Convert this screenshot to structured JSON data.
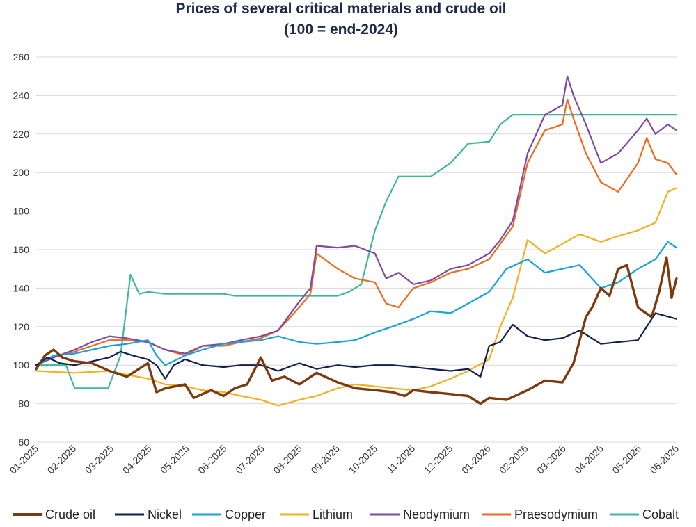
{
  "chart_data": {
    "type": "line",
    "title": "Prices of several critical materials and crude oil",
    "subtitle": "(100 = end-2024)",
    "xlabel": "",
    "ylabel": "",
    "ylim": [
      60,
      260
    ],
    "yticks": [
      60,
      80,
      100,
      120,
      140,
      160,
      180,
      200,
      220,
      240,
      260
    ],
    "xlim": [
      "2025-01-01",
      "2026-06-01"
    ],
    "xtick_labels": [
      "01-2025",
      "02-2025",
      "03-2025",
      "04-2025",
      "05-2025",
      "06-2025",
      "07-2025",
      "08-2025",
      "09-2025",
      "10-2025",
      "11-2025",
      "12-2025",
      "01-2026",
      "02-2026",
      "03-2026",
      "04-2026",
      "05-2026",
      "06-2026"
    ],
    "grid": "horizontal",
    "legend_position": "bottom",
    "series": [
      {
        "name": "Crude oil",
        "color": "#7b3a10",
        "x": [
          "2025-01-01",
          "2025-01-08",
          "2025-01-15",
          "2025-01-22",
          "2025-02-01",
          "2025-02-15",
          "2025-03-01",
          "2025-03-15",
          "2025-04-01",
          "2025-04-08",
          "2025-04-15",
          "2025-05-01",
          "2025-05-08",
          "2025-05-22",
          "2025-06-01",
          "2025-06-10",
          "2025-06-20",
          "2025-07-01",
          "2025-07-10",
          "2025-07-20",
          "2025-08-01",
          "2025-08-15",
          "2025-09-01",
          "2025-09-15",
          "2025-10-01",
          "2025-10-15",
          "2025-10-25",
          "2025-11-01",
          "2025-11-15",
          "2025-12-01",
          "2025-12-15",
          "2025-12-25",
          "2026-01-01",
          "2026-01-15",
          "2026-02-01",
          "2026-02-15",
          "2026-03-01",
          "2026-03-10",
          "2026-03-20",
          "2026-03-25",
          "2026-04-01",
          "2026-04-08",
          "2026-04-15",
          "2026-04-22",
          "2026-05-01",
          "2026-05-05",
          "2026-05-12",
          "2026-05-18",
          "2026-05-24",
          "2026-05-28",
          "2026-06-01"
        ],
        "values": [
          98,
          105,
          108,
          104,
          102,
          101,
          97,
          94,
          101,
          86,
          88,
          90,
          83,
          87,
          84,
          88,
          90,
          104,
          92,
          94,
          90,
          96,
          91,
          88,
          87,
          86,
          84,
          87,
          86,
          85,
          84,
          80,
          83,
          82,
          87,
          92,
          91,
          101,
          125,
          130,
          140,
          136,
          150,
          152,
          130,
          128,
          125,
          138,
          156,
          135,
          145
        ]
      },
      {
        "name": "Nickel",
        "color": "#0e1f4d",
        "x": [
          "2025-01-01",
          "2025-01-10",
          "2025-01-20",
          "2025-02-01",
          "2025-02-15",
          "2025-03-01",
          "2025-03-10",
          "2025-03-20",
          "2025-04-01",
          "2025-04-08",
          "2025-04-15",
          "2025-04-22",
          "2025-05-01",
          "2025-05-15",
          "2025-06-01",
          "2025-06-15",
          "2025-07-01",
          "2025-07-15",
          "2025-08-01",
          "2025-08-15",
          "2025-09-01",
          "2025-09-15",
          "2025-10-01",
          "2025-10-15",
          "2025-11-01",
          "2025-11-15",
          "2025-12-01",
          "2025-12-15",
          "2025-12-25",
          "2026-01-01",
          "2026-01-10",
          "2026-01-20",
          "2026-02-01",
          "2026-02-15",
          "2026-03-01",
          "2026-03-15",
          "2026-04-01",
          "2026-04-15",
          "2026-05-01",
          "2026-05-15",
          "2026-06-01"
        ],
        "values": [
          100,
          104,
          101,
          100,
          102,
          104,
          107,
          105,
          103,
          100,
          93,
          100,
          103,
          100,
          99,
          100,
          100,
          97,
          101,
          98,
          100,
          99,
          100,
          100,
          99,
          98,
          97,
          98,
          94,
          110,
          112,
          121,
          115,
          113,
          114,
          118,
          111,
          112,
          113,
          127,
          124
        ]
      },
      {
        "name": "Copper",
        "color": "#16a2dc",
        "x": [
          "2025-01-01",
          "2025-01-15",
          "2025-02-01",
          "2025-02-15",
          "2025-03-01",
          "2025-03-15",
          "2025-04-01",
          "2025-04-08",
          "2025-04-15",
          "2025-05-01",
          "2025-05-15",
          "2025-06-01",
          "2025-06-15",
          "2025-07-01",
          "2025-07-15",
          "2025-08-01",
          "2025-08-15",
          "2025-09-01",
          "2025-09-15",
          "2025-10-01",
          "2025-10-15",
          "2025-11-01",
          "2025-11-15",
          "2025-12-01",
          "2025-12-15",
          "2026-01-01",
          "2026-01-15",
          "2026-02-01",
          "2026-02-15",
          "2026-03-01",
          "2026-03-15",
          "2026-04-01",
          "2026-04-15",
          "2026-05-01",
          "2026-05-15",
          "2026-05-25",
          "2026-06-01"
        ],
        "values": [
          100,
          105,
          106,
          108,
          110,
          111,
          113,
          105,
          100,
          105,
          108,
          111,
          112,
          113,
          115,
          112,
          111,
          112,
          113,
          117,
          120,
          124,
          128,
          127,
          132,
          138,
          150,
          155,
          148,
          150,
          152,
          140,
          143,
          150,
          155,
          164,
          161
        ]
      },
      {
        "name": "Lithium",
        "color": "#f2b01e",
        "x": [
          "2025-01-01",
          "2025-02-01",
          "2025-03-01",
          "2025-03-15",
          "2025-04-01",
          "2025-04-15",
          "2025-05-01",
          "2025-05-15",
          "2025-06-01",
          "2025-06-15",
          "2025-07-01",
          "2025-07-15",
          "2025-08-01",
          "2025-08-15",
          "2025-09-01",
          "2025-09-15",
          "2025-10-01",
          "2025-10-15",
          "2025-11-01",
          "2025-11-15",
          "2025-12-01",
          "2025-12-15",
          "2026-01-01",
          "2026-01-10",
          "2026-01-20",
          "2026-02-01",
          "2026-02-15",
          "2026-03-01",
          "2026-03-15",
          "2026-04-01",
          "2026-04-15",
          "2026-05-01",
          "2026-05-15",
          "2026-05-25",
          "2026-06-01"
        ],
        "values": [
          97,
          96,
          97,
          95,
          93,
          90,
          89,
          87,
          86,
          84,
          82,
          79,
          82,
          84,
          88,
          90,
          89,
          88,
          87,
          89,
          93,
          97,
          103,
          120,
          135,
          165,
          158,
          163,
          168,
          164,
          167,
          170,
          174,
          190,
          192
        ]
      },
      {
        "name": "Neodymium",
        "color": "#7e4aa6",
        "x": [
          "2025-01-01",
          "2025-01-15",
          "2025-02-01",
          "2025-02-15",
          "2025-03-01",
          "2025-03-15",
          "2025-04-01",
          "2025-04-15",
          "2025-05-01",
          "2025-05-15",
          "2025-06-01",
          "2025-06-15",
          "2025-07-01",
          "2025-07-15",
          "2025-08-01",
          "2025-08-10",
          "2025-08-15",
          "2025-09-01",
          "2025-09-15",
          "2025-10-01",
          "2025-10-10",
          "2025-10-20",
          "2025-11-01",
          "2025-11-15",
          "2025-12-01",
          "2025-12-15",
          "2026-01-01",
          "2026-01-10",
          "2026-01-20",
          "2026-02-01",
          "2026-02-15",
          "2026-03-01",
          "2026-03-05",
          "2026-03-10",
          "2026-03-20",
          "2026-04-01",
          "2026-04-15",
          "2026-05-01",
          "2026-05-08",
          "2026-05-15",
          "2026-05-25",
          "2026-06-01"
        ],
        "values": [
          100,
          104,
          108,
          112,
          115,
          114,
          112,
          108,
          106,
          110,
          111,
          113,
          115,
          118,
          133,
          140,
          162,
          161,
          162,
          158,
          145,
          148,
          142,
          144,
          150,
          152,
          158,
          165,
          175,
          210,
          230,
          235,
          250,
          240,
          225,
          205,
          210,
          222,
          228,
          220,
          225,
          222
        ]
      },
      {
        "name": "Praesodymium",
        "color": "#ee6a1e",
        "x": [
          "2025-01-01",
          "2025-01-15",
          "2025-02-01",
          "2025-02-15",
          "2025-03-01",
          "2025-03-15",
          "2025-04-01",
          "2025-04-15",
          "2025-05-01",
          "2025-05-15",
          "2025-06-01",
          "2025-06-15",
          "2025-07-01",
          "2025-07-15",
          "2025-08-01",
          "2025-08-10",
          "2025-08-15",
          "2025-09-01",
          "2025-09-15",
          "2025-10-01",
          "2025-10-10",
          "2025-10-20",
          "2025-11-01",
          "2025-11-15",
          "2025-12-01",
          "2025-12-15",
          "2026-01-01",
          "2026-01-10",
          "2026-01-20",
          "2026-02-01",
          "2026-02-15",
          "2026-03-01",
          "2026-03-05",
          "2026-03-10",
          "2026-03-20",
          "2026-04-01",
          "2026-04-15",
          "2026-05-01",
          "2026-05-08",
          "2026-05-15",
          "2026-05-25",
          "2026-06-01"
        ],
        "values": [
          100,
          104,
          107,
          110,
          113,
          113,
          112,
          108,
          105,
          110,
          110,
          112,
          114,
          118,
          130,
          137,
          158,
          150,
          145,
          143,
          132,
          130,
          140,
          143,
          148,
          150,
          155,
          163,
          172,
          205,
          222,
          225,
          238,
          228,
          210,
          195,
          190,
          205,
          218,
          207,
          205,
          199
        ]
      },
      {
        "name": "Cobalt",
        "color": "#3fb89a",
        "x": [
          "2025-01-01",
          "2025-01-25",
          "2025-02-01",
          "2025-02-28",
          "2025-03-10",
          "2025-03-18",
          "2025-03-25",
          "2025-04-01",
          "2025-04-15",
          "2025-06-01",
          "2025-06-10",
          "2025-07-01",
          "2025-08-01",
          "2025-09-01",
          "2025-09-10",
          "2025-09-20",
          "2025-10-01",
          "2025-10-10",
          "2025-10-20",
          "2025-11-01",
          "2025-11-15",
          "2025-12-01",
          "2025-12-15",
          "2026-01-01",
          "2026-01-10",
          "2026-01-20",
          "2026-02-01",
          "2026-03-01",
          "2026-04-01",
          "2026-05-01",
          "2026-06-01"
        ],
        "values": [
          100,
          100,
          88,
          88,
          105,
          147,
          137,
          138,
          137,
          137,
          136,
          136,
          136,
          136,
          138,
          142,
          170,
          185,
          198,
          198,
          198,
          205,
          215,
          216,
          225,
          230,
          230,
          230,
          230,
          230,
          230
        ]
      }
    ]
  }
}
